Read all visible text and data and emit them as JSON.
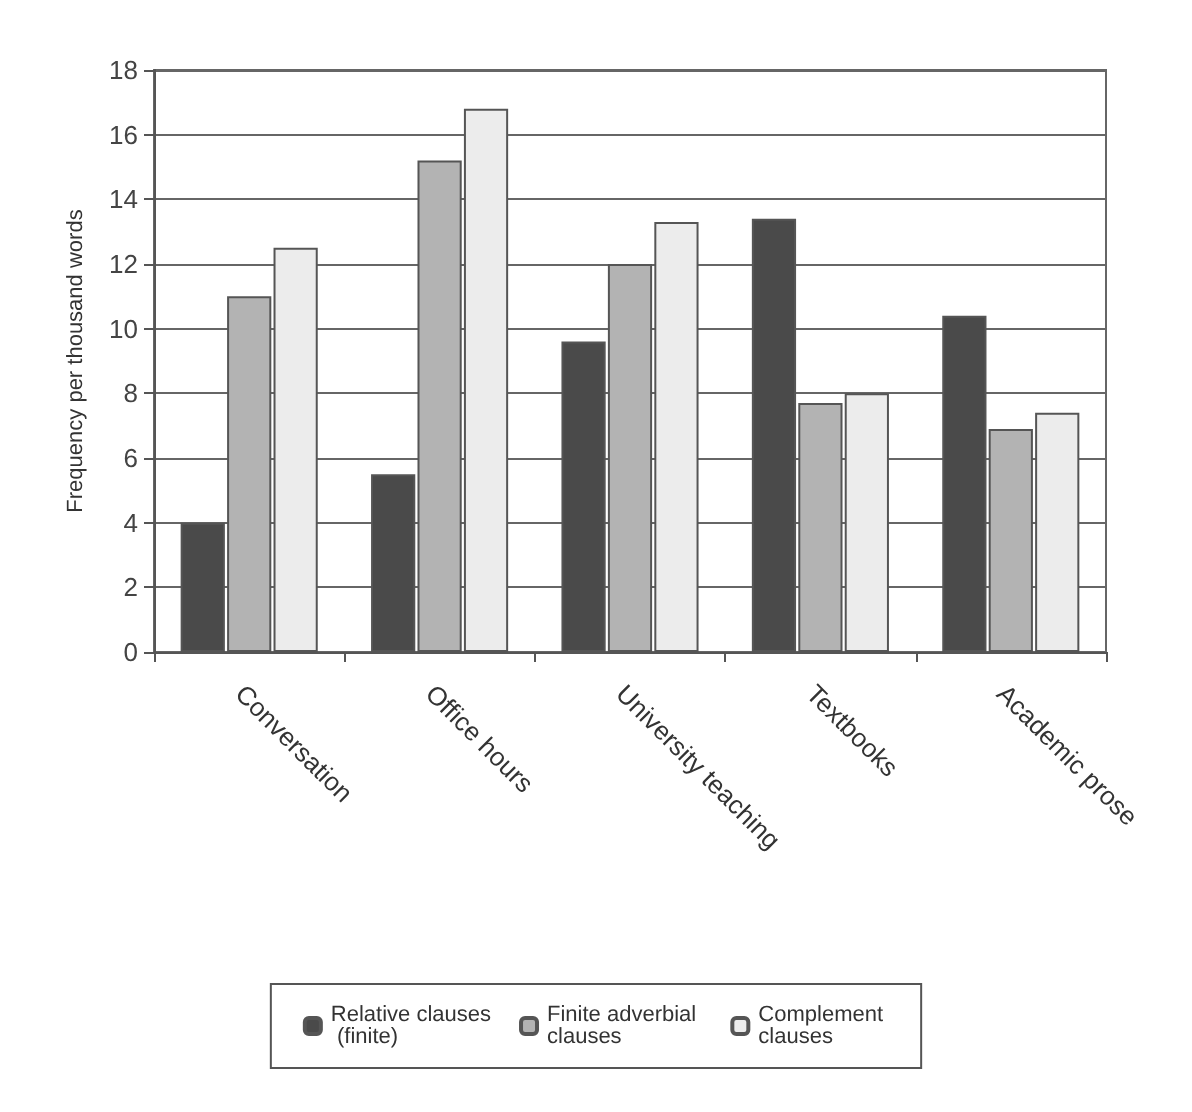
{
  "chart_data": {
    "type": "bar",
    "ylabel": "Frequency per thousand words",
    "categories": [
      "Conversation",
      "Office hours",
      "University teaching",
      "Textbooks",
      "Academic prose"
    ],
    "series": [
      {
        "name": "Relative clauses (finite)",
        "color": "#4a4a4a",
        "values": [
          4,
          5.5,
          9.6,
          13.4,
          10.4
        ]
      },
      {
        "name": "Finite adverbial clauses",
        "color": "#b3b3b3",
        "values": [
          11,
          15.2,
          12,
          7.7,
          6.9
        ]
      },
      {
        "name": "Complement clauses",
        "color": "#ececec",
        "values": [
          12.5,
          16.8,
          13.3,
          8,
          7.4
        ]
      }
    ],
    "ylim": [
      0,
      18
    ],
    "yticks": [
      0,
      2,
      4,
      6,
      8,
      10,
      12,
      14,
      16,
      18
    ],
    "grid": "y",
    "legend": "bottom"
  }
}
